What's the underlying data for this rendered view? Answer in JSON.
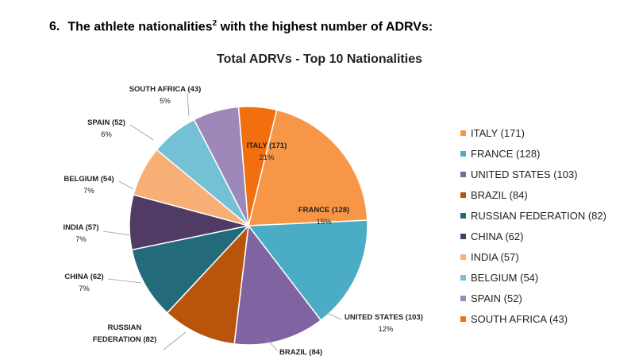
{
  "heading": {
    "number": "6.",
    "text": "The athlete nationalities",
    "sup": "2",
    "text_after": " with the highest number of ADRVs:"
  },
  "chart_data": {
    "type": "pie",
    "title": "Total ADRVs - Top 10 Nationalities",
    "legend_position": "right",
    "slices": [
      {
        "label": "ITALY (171)",
        "legend": "ITALY (171)",
        "value": 171,
        "percent": "21%",
        "color": "#F79646"
      },
      {
        "label": "FRANCE (128)",
        "legend": "FRANCE (128)",
        "value": 128,
        "percent": "15%",
        "color": "#4BACC6"
      },
      {
        "label": "UNITED STATES (103)",
        "legend": "UNITED STATES (103)",
        "value": 103,
        "percent": "12%",
        "color": "#8064A2"
      },
      {
        "label": "BRAZIL (84)",
        "legend": "BRAZIL (84)",
        "value": 84,
        "percent": "",
        "color": "#B9550B"
      },
      {
        "label": "RUSSIAN\nFEDERATION (82)",
        "legend": "RUSSIAN FEDERATION (82)",
        "value": 82,
        "percent": "",
        "color": "#236B7B"
      },
      {
        "label": "CHINA (62)",
        "legend": "CHINA (62)",
        "value": 62,
        "percent": "7%",
        "color": "#4F3B63"
      },
      {
        "label": "INDIA (57)",
        "legend": "INDIA (57)",
        "value": 57,
        "percent": "7%",
        "color": "#F8AF76"
      },
      {
        "label": "BELGIUM (54)",
        "legend": "BELGIUM (54)",
        "value": 54,
        "percent": "7%",
        "color": "#74C0D5"
      },
      {
        "label": "SPAIN (52)",
        "legend": "SPAIN (52)",
        "value": 52,
        "percent": "6%",
        "color": "#9D88B9"
      },
      {
        "label": "SOUTH AFRICA (43)",
        "legend": "SOUTH AFRICA (43)",
        "value": 43,
        "percent": "5%",
        "color": "#F26F0F"
      }
    ]
  }
}
